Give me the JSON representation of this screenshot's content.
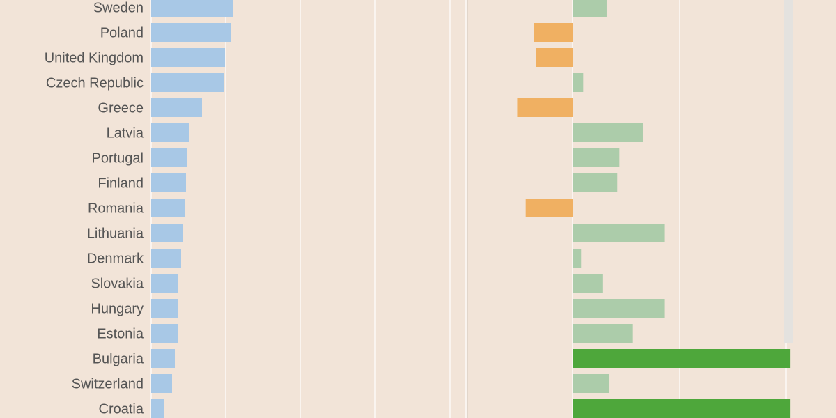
{
  "colors": {
    "background": "#f2e4d8",
    "plot_background": "#f2e4d8",
    "gridline": "#ffffff",
    "left_bar": "#a8c8e6",
    "right_positive": "#acccaa",
    "right_negative": "#f0b062",
    "right_highlight": "#4ea73b",
    "label_text": "#555555",
    "scrollbar": "#e4e2df"
  },
  "chart_data": [
    {
      "type": "bar",
      "orientation": "horizontal",
      "categories": [
        "Sweden",
        "Poland",
        "United Kingdom",
        "Czech Republic",
        "Greece",
        "Latvia",
        "Portugal",
        "Finland",
        "Romania",
        "Lithuania",
        "Denmark",
        "Slovakia",
        "Hungary",
        "Estonia",
        "Bulgaria",
        "Switzerland",
        "Croatia"
      ],
      "values": [
        11.8,
        11.4,
        10.6,
        10.4,
        7.3,
        5.5,
        5.2,
        5.0,
        4.8,
        4.6,
        4.3,
        3.9,
        3.9,
        3.9,
        3.4,
        3.0,
        1.9
      ],
      "xlim": [
        0,
        46
      ],
      "gridlines_at": [
        0,
        10.7,
        21.4,
        32.1,
        42.9
      ],
      "grid": true,
      "title": "",
      "xlabel": "",
      "ylabel": ""
    },
    {
      "type": "bar",
      "orientation": "horizontal",
      "categories": [
        "Sweden",
        "Poland",
        "United Kingdom",
        "Czech Republic",
        "Greece",
        "Latvia",
        "Portugal",
        "Finland",
        "Romania",
        "Lithuania",
        "Denmark",
        "Slovakia",
        "Hungary",
        "Estonia",
        "Bulgaria",
        "Switzerland",
        "Croatia"
      ],
      "values": [
        1.6,
        -1.8,
        -1.7,
        0.5,
        -2.6,
        3.3,
        2.2,
        2.1,
        -2.2,
        4.3,
        0.4,
        1.4,
        4.3,
        2.8,
        10.2,
        1.7,
        10.2
      ],
      "highlighted": [
        "Bulgaria",
        "Croatia"
      ],
      "xlim": [
        -5,
        10.2
      ],
      "gridlines_at": [
        -5,
        0,
        5,
        10
      ],
      "grid": true,
      "title": "",
      "xlabel": "",
      "ylabel": ""
    }
  ]
}
